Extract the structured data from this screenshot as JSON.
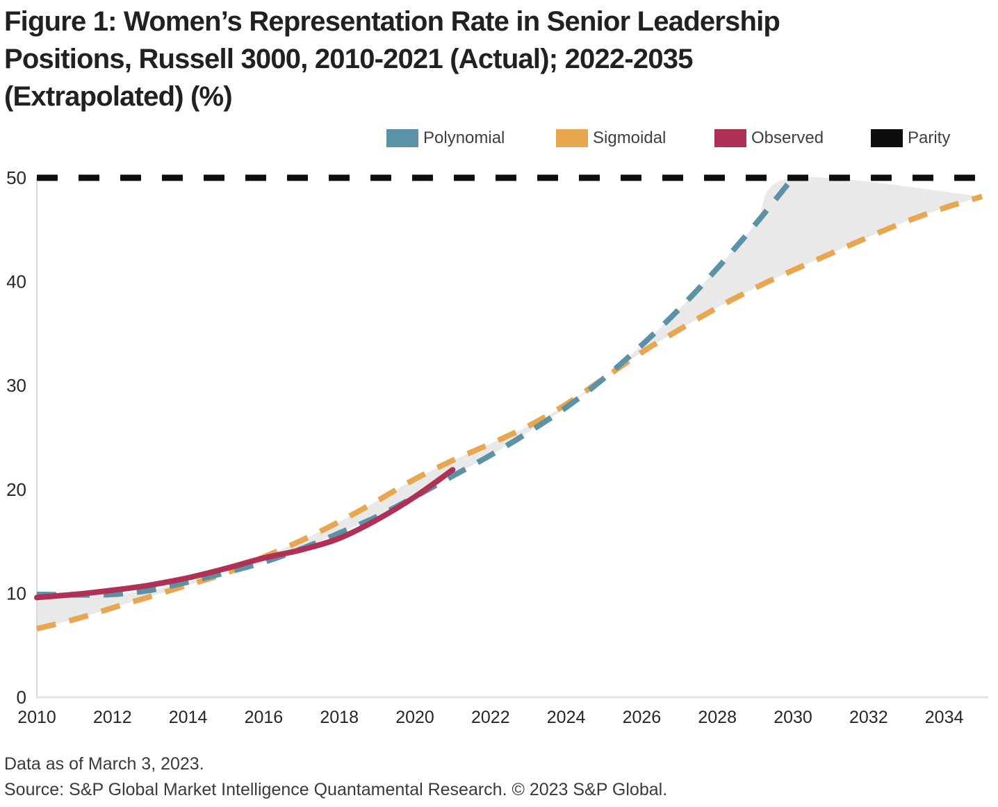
{
  "title_lines": [
    "Figure 1: Women’s Representation Rate in Senior Leadership",
    "Positions, Russell 3000, 2010-2021 (Actual); 2022-2035",
    "(Extrapolated) (%)"
  ],
  "legend": [
    {
      "label": "Polynomial",
      "color": "#5b92a5"
    },
    {
      "label": "Sigmoidal",
      "color": "#e7a64f"
    },
    {
      "label": "Observed",
      "color": "#b03156"
    },
    {
      "label": "Parity",
      "color": "#0d0d0d"
    }
  ],
  "footer": {
    "line1": "Data as of March 3, 2023.",
    "line2": "Source: S&P Global Market Intelligence Quantamental Research. © 2023 S&P Global."
  },
  "chart_data": {
    "type": "line",
    "title": "Figure 1: Women’s Representation Rate in Senior Leadership Positions, Russell 3000, 2010-2021 (Actual); 2022-2035 (Extrapolated) (%)",
    "xlabel": "",
    "ylabel": "",
    "xlim": [
      2010,
      2035
    ],
    "ylim": [
      0,
      50
    ],
    "x_ticks": [
      2010,
      2012,
      2014,
      2016,
      2018,
      2020,
      2022,
      2024,
      2026,
      2028,
      2030,
      2032,
      2034
    ],
    "y_ticks": [
      0,
      10,
      20,
      30,
      40,
      50
    ],
    "grid": false,
    "legend_position": "top-right",
    "band": {
      "between": [
        "Polynomial",
        "Sigmoidal"
      ],
      "color": "#e9e9e9",
      "top_end_point": {
        "x": 2035,
        "y": 48.2
      }
    },
    "series": [
      {
        "name": "Polynomial",
        "style": "dashed",
        "color": "#5b92a5",
        "x": [
          2010,
          2011,
          2012,
          2013,
          2014,
          2015,
          2016,
          2017,
          2018,
          2019,
          2020,
          2021,
          2022,
          2023,
          2024,
          2025,
          2026,
          2027,
          2028,
          2029,
          2030
        ],
        "values": [
          9.9,
          9.85,
          9.9,
          10.3,
          11.1,
          12.0,
          13.0,
          14.3,
          15.8,
          17.4,
          19.3,
          21.3,
          23.3,
          25.5,
          27.9,
          30.7,
          33.9,
          37.4,
          41.3,
          45.5,
          50.0
        ]
      },
      {
        "name": "Sigmoidal",
        "style": "dashed",
        "color": "#e7a64f",
        "x": [
          2010,
          2011,
          2012,
          2013,
          2014,
          2015,
          2016,
          2017,
          2018,
          2019,
          2020,
          2021,
          2022,
          2023,
          2024,
          2025,
          2026,
          2027,
          2028,
          2029,
          2030,
          2031,
          2032,
          2033,
          2034,
          2035
        ],
        "values": [
          6.6,
          7.5,
          8.6,
          9.7,
          10.8,
          11.95,
          13.5,
          15.1,
          16.9,
          18.9,
          21.0,
          22.8,
          24.4,
          26.1,
          28.2,
          30.7,
          33.2,
          35.4,
          37.5,
          39.4,
          41.1,
          42.7,
          44.3,
          45.8,
          47.1,
          48.2
        ]
      },
      {
        "name": "Observed",
        "style": "solid",
        "color": "#b03156",
        "x": [
          2010,
          2011,
          2012,
          2013,
          2014,
          2015,
          2016,
          2017,
          2018,
          2019,
          2020,
          2021
        ],
        "values": [
          9.6,
          9.9,
          10.3,
          10.8,
          11.5,
          12.4,
          13.4,
          14.2,
          15.3,
          17.1,
          19.3,
          21.9
        ]
      },
      {
        "name": "Parity",
        "style": "dashed-horizontal",
        "color": "#0d0d0d",
        "value": 50
      }
    ]
  }
}
